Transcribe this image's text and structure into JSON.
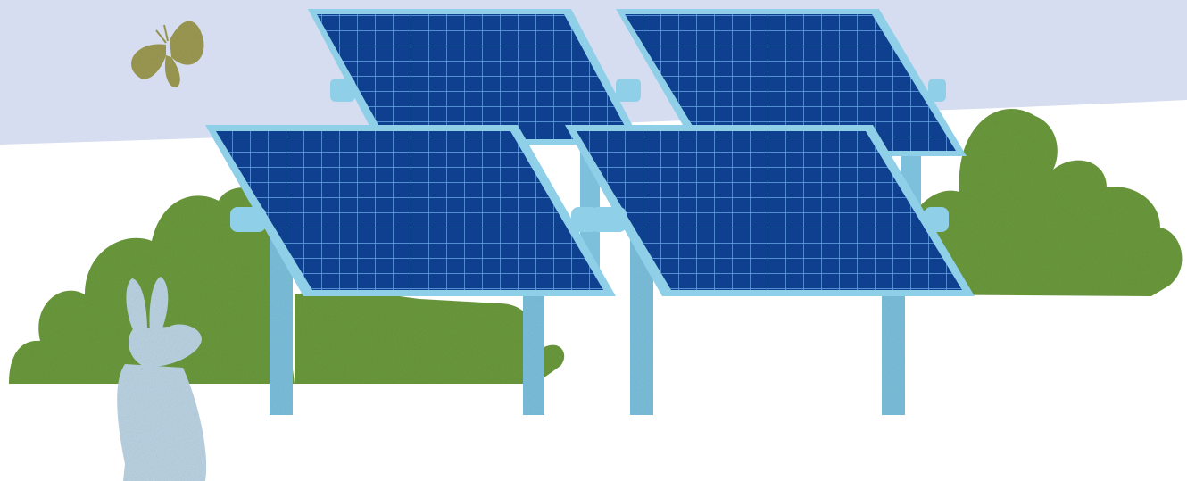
{
  "scene": {
    "sky_color": "#d6ddf0",
    "ground_color": "#ffffff",
    "shrub_color": "#6b9a3c",
    "shrub_light_color": "#8cb85a",
    "panel_color": "#0f3f8f",
    "panel_grid_color": "#6aa8e8",
    "frame_color": "#8fd0e8",
    "post_color": "#7cc0dc",
    "moth_color": "#9c9a52",
    "rabbit_color": "#bcd4e4",
    "panel_count": 4,
    "elements": [
      "sky",
      "shrubs",
      "solar-panels",
      "moth-icon",
      "rabbit-icon"
    ]
  }
}
